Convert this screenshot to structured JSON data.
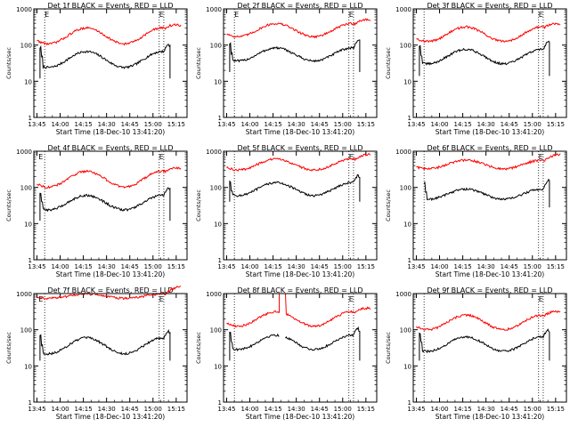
{
  "colors": {
    "events": "#000000",
    "lld": "#ff0000",
    "axis": "#000000",
    "background": "#ffffff"
  },
  "chart_data": [
    {
      "type": "line",
      "title": "Det 1f BLACK = Events, RED = LLD",
      "xlabel": "Start Time (18-Dec-10 13:41:20)",
      "ylabel": "Counts/sec",
      "x_ticks": [
        "13:45",
        "14:00",
        "14:15",
        "14:30",
        "14:45",
        "15:00",
        "15:15"
      ],
      "y_ticks": [
        "1",
        "10",
        "100",
        "1000"
      ],
      "ylim": [
        1,
        1000
      ],
      "y_scale": "log",
      "markers": [
        {
          "label": "E",
          "time": "13:50"
        },
        {
          "label": "E",
          "time": "15:04"
        }
      ],
      "event_lines": [
        "13:50",
        "15:04",
        "15:07"
      ],
      "series": [
        {
          "name": "Events",
          "color": "#000000",
          "base": 40,
          "amp": 0.22,
          "start": "13:47",
          "end": "15:11",
          "left_spike": 85,
          "right_spike": 95,
          "spike_drop": 12
        },
        {
          "name": "LLD",
          "color": "#ff0000",
          "base": 180,
          "amp": 0.22,
          "start": "13:45",
          "end": "15:18",
          "right_spike": 500
        }
      ]
    },
    {
      "type": "line",
      "title": "Det 2f BLACK = Events, RED = LLD",
      "xlabel": "Start Time (18-Dec-10 13:41:20)",
      "ylabel": "Counts/sec",
      "x_ticks": [
        "13:45",
        "14:00",
        "14:15",
        "14:30",
        "14:45",
        "15:00",
        "15:15"
      ],
      "y_ticks": [
        "1",
        "10",
        "100",
        "1000"
      ],
      "ylim": [
        1,
        1000
      ],
      "y_scale": "log",
      "markers": [
        {
          "label": "E",
          "time": "13:50"
        },
        {
          "label": "E",
          "time": "15:04"
        }
      ],
      "event_lines": [
        "13:50",
        "15:04",
        "15:07"
      ],
      "series": [
        {
          "name": "Events",
          "color": "#000000",
          "base": 55,
          "amp": 0.18,
          "start": "13:47",
          "end": "15:11",
          "left_spike": 110,
          "right_spike": 140,
          "spike_drop": 18
        },
        {
          "name": "LLD",
          "color": "#ff0000",
          "base": 260,
          "amp": 0.18,
          "start": "13:45",
          "end": "15:18",
          "right_spike": 600
        }
      ]
    },
    {
      "type": "line",
      "title": "Det 3f BLACK = Events, RED = LLD",
      "xlabel": "Start Time (18-Dec-10 13:41:20)",
      "ylabel": "Counts/sec",
      "x_ticks": [
        "13:45",
        "14:00",
        "14:15",
        "14:30",
        "14:45",
        "15:00",
        "15:15"
      ],
      "y_ticks": [
        "1",
        "10",
        "100",
        "1000"
      ],
      "ylim": [
        1,
        1000
      ],
      "y_scale": "log",
      "markers": [
        {
          "label": "E",
          "time": "15:04"
        }
      ],
      "event_lines": [
        "13:50",
        "15:04",
        "15:07"
      ],
      "series": [
        {
          "name": "Events",
          "color": "#000000",
          "base": 48,
          "amp": 0.2,
          "start": "13:47",
          "end": "15:11",
          "left_spike": 95,
          "right_spike": 130,
          "spike_drop": 14
        },
        {
          "name": "LLD",
          "color": "#ff0000",
          "base": 200,
          "amp": 0.2,
          "start": "13:45",
          "end": "15:18",
          "right_spike": 520
        }
      ]
    },
    {
      "type": "line",
      "title": "Det 4f BLACK = Events, RED = LLD",
      "xlabel": "Start Time (18-Dec-10 13:41:20)",
      "ylabel": "Counts/sec",
      "x_ticks": [
        "13:45",
        "14:00",
        "14:15",
        "14:30",
        "14:45",
        "15:00",
        "15:15"
      ],
      "y_ticks": [
        "1",
        "10",
        "100",
        "1000"
      ],
      "ylim": [
        1,
        1000
      ],
      "y_scale": "log",
      "markers": [
        {
          "label": "E",
          "time": "13:46"
        },
        {
          "label": "E",
          "time": "15:04"
        }
      ],
      "event_lines": [
        "13:50",
        "15:04",
        "15:07"
      ],
      "series": [
        {
          "name": "Events",
          "color": "#000000",
          "base": 38,
          "amp": 0.2,
          "start": "13:47",
          "end": "15:11",
          "left_spike": 70,
          "right_spike": 90,
          "spike_drop": 12
        },
        {
          "name": "LLD",
          "color": "#ff0000",
          "base": 170,
          "amp": 0.22,
          "start": "13:45",
          "end": "15:18",
          "right_spike": 380
        }
      ]
    },
    {
      "type": "line",
      "title": "Det 5f BLACK = Events, RED = LLD",
      "xlabel": "Start Time (18-Dec-10 13:41:20)",
      "ylabel": "Counts/sec",
      "x_ticks": [
        "13:45",
        "14:00",
        "14:15",
        "14:30",
        "14:45",
        "15:00",
        "15:15"
      ],
      "y_ticks": [
        "1",
        "10",
        "100",
        "1000"
      ],
      "ylim": [
        1,
        1000
      ],
      "y_scale": "log",
      "markers": [
        {
          "label": "E",
          "time": "15:04"
        }
      ],
      "event_lines": [
        "13:50",
        "15:04",
        "15:07"
      ],
      "series": [
        {
          "name": "Events",
          "color": "#000000",
          "base": 90,
          "amp": 0.18,
          "start": "13:47",
          "end": "15:11",
          "left_spike": 150,
          "right_spike": 190,
          "spike_drop": 40
        },
        {
          "name": "LLD",
          "color": "#ff0000",
          "base": 430,
          "amp": 0.15,
          "start": "13:45",
          "end": "15:18",
          "right_spike": 700
        }
      ]
    },
    {
      "type": "line",
      "title": "Det 6f BLACK = Events, RED = LLD",
      "xlabel": "Start Time (18-Dec-10 13:41:20)",
      "ylabel": "Counts/sec",
      "x_ticks": [
        "13:45",
        "14:00",
        "14:15",
        "14:30",
        "14:45",
        "15:00",
        "15:15"
      ],
      "y_ticks": [
        "1",
        "10",
        "100",
        "1000"
      ],
      "ylim": [
        1,
        1000
      ],
      "y_scale": "log",
      "markers": [
        {
          "label": "E",
          "time": "15:04"
        }
      ],
      "event_lines": [
        "13:50",
        "15:04",
        "15:07"
      ],
      "series": [
        {
          "name": "Events",
          "color": "#000000",
          "base": 65,
          "amp": 0.14,
          "start": "13:50",
          "end": "15:11",
          "left_spike": 130,
          "right_spike": 160,
          "spike_drop": 28
        },
        {
          "name": "LLD",
          "color": "#ff0000",
          "base": 430,
          "amp": 0.12,
          "start": "13:45",
          "end": "15:18",
          "right_spike": 700
        }
      ]
    },
    {
      "type": "line",
      "title": "Det 7f BLACK = Events, RED = LLD",
      "xlabel": "Start Time (18-Dec-10 13:41:20)",
      "ylabel": "Counts/sec",
      "x_ticks": [
        "13:45",
        "14:00",
        "14:15",
        "14:30",
        "14:45",
        "15:00",
        "15:15"
      ],
      "y_ticks": [
        "1",
        "10",
        "100",
        "1000"
      ],
      "ylim": [
        1,
        1000
      ],
      "y_scale": "log",
      "markers": [
        {
          "label": "E",
          "time": "13:46"
        },
        {
          "label": "E",
          "time": "15:04"
        }
      ],
      "event_lines": [
        "13:50",
        "15:04",
        "15:07"
      ],
      "series": [
        {
          "name": "Events",
          "color": "#000000",
          "base": 36,
          "amp": 0.22,
          "start": "13:47",
          "end": "15:11",
          "left_spike": 70,
          "right_spike": 80,
          "spike_drop": 14
        },
        {
          "name": "LLD",
          "color": "#ff0000",
          "base": 850,
          "amp": 0.06,
          "start": "13:45",
          "end": "15:18",
          "right_spike": 1000
        }
      ]
    },
    {
      "type": "line",
      "title": "Det 8f BLACK = Events, RED = LLD",
      "xlabel": "Start Time (18-Dec-10 13:41:20)",
      "ylabel": "Counts/sec",
      "x_ticks": [
        "13:45",
        "14:00",
        "14:15",
        "14:30",
        "14:45",
        "15:00",
        "15:15"
      ],
      "y_ticks": [
        "1",
        "10",
        "100",
        "1000"
      ],
      "ylim": [
        1,
        1000
      ],
      "y_scale": "log",
      "markers": [
        {
          "label": "E",
          "time": "15:04"
        }
      ],
      "event_lines": [
        "13:50",
        "15:04",
        "15:07"
      ],
      "gap": [
        "14:19",
        "14:23"
      ],
      "series": [
        {
          "name": "Events",
          "color": "#000000",
          "base": 45,
          "amp": 0.2,
          "start": "13:47",
          "end": "15:11",
          "left_spike": 85,
          "right_spike": 90,
          "spike_drop": 14
        },
        {
          "name": "LLD",
          "color": "#ff0000",
          "base": 200,
          "amp": 0.2,
          "start": "13:45",
          "end": "15:18",
          "right_spike": 400,
          "gap_spike": 1000
        }
      ]
    },
    {
      "type": "line",
      "title": "Det 9f BLACK = Events, RED = LLD",
      "xlabel": "Start Time (18-Dec-10 13:41:20)",
      "ylabel": "Counts/sec",
      "x_ticks": [
        "13:45",
        "14:00",
        "14:15",
        "14:30",
        "14:45",
        "15:00",
        "15:15"
      ],
      "y_ticks": [
        "1",
        "10",
        "100",
        "1000"
      ],
      "ylim": [
        1,
        1000
      ],
      "y_scale": "log",
      "markers": [
        {
          "label": "E",
          "time": "15:04"
        }
      ],
      "event_lines": [
        "13:50",
        "15:04",
        "15:07"
      ],
      "series": [
        {
          "name": "Events",
          "color": "#000000",
          "base": 40,
          "amp": 0.2,
          "start": "13:47",
          "end": "15:11",
          "left_spike": 80,
          "right_spike": 90,
          "spike_drop": 14
        },
        {
          "name": "LLD",
          "color": "#ff0000",
          "base": 160,
          "amp": 0.2,
          "start": "13:45",
          "end": "15:18",
          "right_spike": 380
        }
      ]
    }
  ]
}
